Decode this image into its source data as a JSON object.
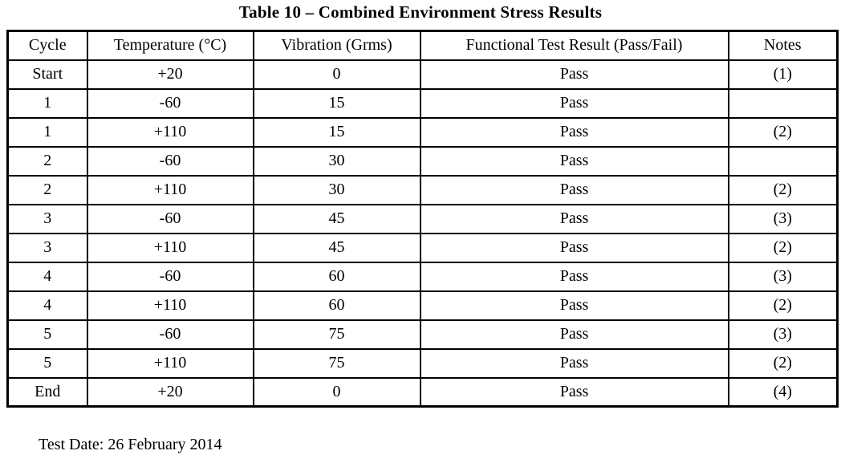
{
  "title": "Table 10 – Combined Environment Stress Results",
  "colors": {
    "text": "#000000",
    "background": "#ffffff",
    "border": "#000000"
  },
  "table": {
    "columns": [
      "Cycle",
      "Temperature (°C)",
      "Vibration (Grms)",
      "Functional Test Result (Pass/Fail)",
      "Notes"
    ],
    "rows": [
      [
        "Start",
        "+20",
        "0",
        "Pass",
        "(1)"
      ],
      [
        "1",
        "-60",
        "15",
        "Pass",
        ""
      ],
      [
        "1",
        "+110",
        "15",
        "Pass",
        "(2)"
      ],
      [
        "2",
        "-60",
        "30",
        "Pass",
        ""
      ],
      [
        "2",
        "+110",
        "30",
        "Pass",
        "(2)"
      ],
      [
        "3",
        "-60",
        "45",
        "Pass",
        "(3)"
      ],
      [
        "3",
        "+110",
        "45",
        "Pass",
        "(2)"
      ],
      [
        "4",
        "-60",
        "60",
        "Pass",
        "(3)"
      ],
      [
        "4",
        "+110",
        "60",
        "Pass",
        "(2)"
      ],
      [
        "5",
        "-60",
        "75",
        "Pass",
        "(3)"
      ],
      [
        "5",
        "+110",
        "75",
        "Pass",
        "(2)"
      ],
      [
        "End",
        "+20",
        "0",
        "Pass",
        "(4)"
      ]
    ]
  },
  "footer": {
    "test_date": "Test Date: 26 February 2014"
  }
}
